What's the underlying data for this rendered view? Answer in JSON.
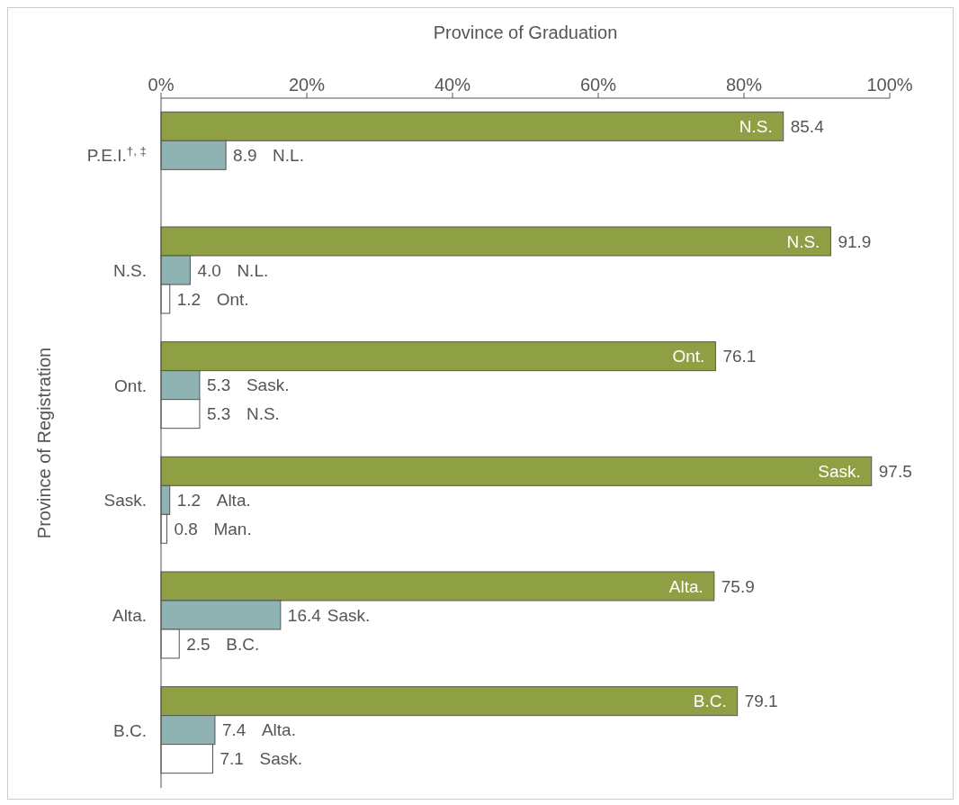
{
  "chart_data": {
    "type": "bar",
    "orientation": "horizontal",
    "xlabel": "Province of Graduation",
    "ylabel": "Province of Registration",
    "categories": [
      "P.E.I.$^{†, ‡}$",
      "N.S.",
      "Ont.",
      "Sask.",
      "Alta.",
      "B.C."
    ],
    "series": [
      {
        "color": "#8fa044",
        "values": [
          85.4,
          91.9,
          76.1,
          97.5,
          75.9,
          79.1
        ],
        "value_labels": [
          "85.4",
          "91.9",
          "76.1",
          "97.5",
          "75.9",
          "79.1"
        ]
      },
      {
        "color": "#8fb3b3",
        "values": [
          8.9,
          4.0,
          5.3,
          1.2,
          16.4,
          7.4
        ],
        "value_labels": [
          "8.9",
          "4.0",
          "5.3",
          "1.2",
          "16.4",
          "7.4"
        ]
      },
      {
        "color": "#ffffff",
        "values": [
          null,
          1.2,
          5.3,
          0.8,
          2.5,
          7.1
        ],
        "value_labels": [
          null,
          "1.2",
          "5.3",
          "0.8",
          "2.5",
          "7.1"
        ]
      }
    ],
    "xlim": [
      0,
      100
    ],
    "xticks": [
      {
        "value": 0,
        "label": "0%"
      },
      {
        "value": 20,
        "label": "20%"
      },
      {
        "value": 40,
        "label": "40%"
      },
      {
        "value": 60,
        "label": "60%"
      },
      {
        "value": 80,
        "label": "80%"
      },
      {
        "value": 100,
        "label": "100%"
      }
    ],
    "grid": false,
    "legend": false,
    "annotations": [
      "N.S.",
      "N.L.",
      "N.S.",
      "N.L.",
      "Ont.",
      "Ont.",
      "Sask.",
      "N.S.",
      "Sask.",
      "Alta.",
      "Man.",
      "Alta.",
      "Sask.",
      "B.C.",
      "B.C.",
      "Alta.",
      "Sask."
    ]
  }
}
